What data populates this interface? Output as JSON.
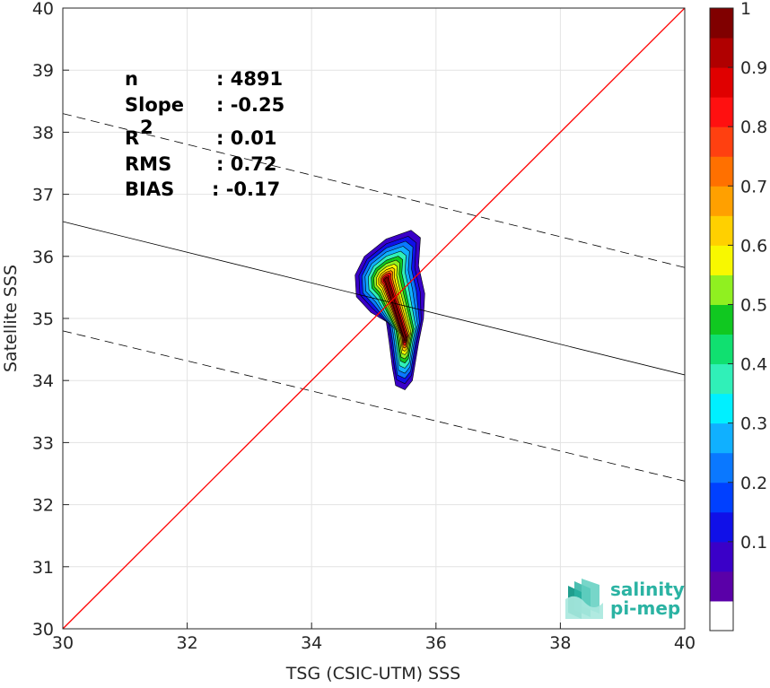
{
  "chart_data": {
    "type": "contour",
    "xlabel": "TSG (CSIC-UTM) SSS",
    "ylabel": "Satellite SSS",
    "xlim": [
      30,
      40
    ],
    "ylim": [
      30,
      40
    ],
    "xticks": [
      "30",
      "32",
      "34",
      "36",
      "38",
      "40"
    ],
    "yticks": [
      "30",
      "31",
      "32",
      "33",
      "34",
      "35",
      "36",
      "37",
      "38",
      "39",
      "40"
    ],
    "grid": true,
    "stats": [
      {
        "label": "n",
        "value": ": 4891"
      },
      {
        "label": "Slope",
        "value": ": -0.25"
      },
      {
        "label": "R",
        "sup": "2",
        "value": ": 0.01"
      },
      {
        "label": "RMS",
        "value": ": 0.72"
      },
      {
        "label": "BIAS",
        "value": ": -0.17"
      }
    ],
    "lines": {
      "one_to_one": {
        "x": [
          30,
          40
        ],
        "y": [
          30,
          40
        ],
        "color": "#ff0000"
      },
      "regression": {
        "x": [
          30,
          40
        ],
        "y": [
          36.56,
          34.09
        ],
        "color": "#000000"
      },
      "upper_bound": {
        "x": [
          30,
          40
        ],
        "y": [
          38.3,
          35.82
        ],
        "color": "#000000",
        "style": "dashed"
      },
      "lower_bound": {
        "x": [
          30,
          40
        ],
        "y": [
          34.8,
          32.38
        ],
        "color": "#000000",
        "style": "dashed"
      }
    },
    "density_peaks": [
      {
        "x": 35.2,
        "y": 35.62,
        "value": 1.0
      },
      {
        "x": 35.5,
        "y": 34.68,
        "value": 1.0
      }
    ],
    "colorbar": {
      "ticks": [
        "0.1",
        "0.2",
        "0.3",
        "0.4",
        "0.5",
        "0.6",
        "0.7",
        "0.8",
        "0.9",
        "1"
      ],
      "range": [
        0,
        1
      ],
      "colors": [
        "#ffffff",
        "#5a00a8",
        "#3a00c8",
        "#1010e8",
        "#0040ff",
        "#0a78ff",
        "#10b0ff",
        "#00f0ff",
        "#30f0b8",
        "#10e070",
        "#10c820",
        "#90f020",
        "#f8f800",
        "#ffd000",
        "#ffa000",
        "#ff7000",
        "#ff4010",
        "#ff1010",
        "#e00000",
        "#b00000",
        "#800000"
      ]
    }
  },
  "logo": {
    "line1": "salinity",
    "line2": "pi-mep"
  }
}
